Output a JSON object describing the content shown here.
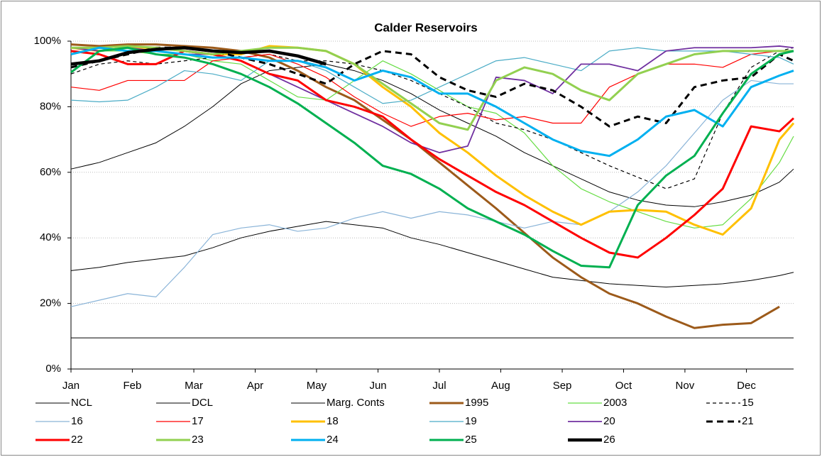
{
  "chart_data": {
    "type": "line",
    "title": "Calder Reservoirs",
    "x": [
      1,
      3,
      5,
      7,
      9,
      11,
      13,
      15,
      17,
      19,
      21,
      23,
      25,
      27,
      29,
      31,
      33,
      35,
      37,
      39,
      41,
      43,
      45,
      47,
      49,
      51,
      52
    ],
    "xlim": [
      1,
      52
    ],
    "xticks": [
      {
        "value": 1,
        "label": "Jan"
      },
      {
        "value": 5.33,
        "label": "Feb"
      },
      {
        "value": 9.67,
        "label": "Mar"
      },
      {
        "value": 14,
        "label": "Apr"
      },
      {
        "value": 18.33,
        "label": "May"
      },
      {
        "value": 22.67,
        "label": "Jun"
      },
      {
        "value": 27,
        "label": "Jul"
      },
      {
        "value": 31.33,
        "label": "Aug"
      },
      {
        "value": 35.67,
        "label": "Sep"
      },
      {
        "value": 40,
        "label": "Oct"
      },
      {
        "value": 44.33,
        "label": "Nov"
      },
      {
        "value": 48.67,
        "label": "Dec"
      }
    ],
    "ylim": [
      0,
      100
    ],
    "yticks": [
      {
        "value": 0,
        "label": "0%"
      },
      {
        "value": 20,
        "label": "20%"
      },
      {
        "value": 40,
        "label": "40%"
      },
      {
        "value": 60,
        "label": "60%"
      },
      {
        "value": 80,
        "label": "80%"
      },
      {
        "value": 100,
        "label": "100%"
      }
    ],
    "grid": true,
    "legend": "bottom",
    "series": [
      {
        "name": "NCL",
        "color": "#000000",
        "weight": "hair",
        "dash": false,
        "values": [
          61,
          63,
          66,
          69,
          74,
          80,
          87,
          91,
          92,
          93,
          91,
          88,
          84,
          79,
          75,
          71,
          66,
          62,
          58,
          54,
          51.5,
          50,
          49.5,
          51,
          53,
          57,
          61
        ]
      },
      {
        "name": "DCL",
        "color": "#000000",
        "weight": "hair",
        "dash": false,
        "values": [
          30,
          31,
          32.5,
          33.5,
          34.5,
          37,
          40,
          42,
          43.5,
          45,
          44,
          43,
          40,
          38,
          35.5,
          33,
          30.5,
          28,
          27,
          26,
          25.5,
          25,
          25.5,
          26,
          27,
          28.5,
          29.5
        ]
      },
      {
        "name": "Marg. Conts",
        "color": "#000000",
        "weight": "hair",
        "dash": false,
        "values": [
          9.5,
          9.5,
          9.5,
          9.5,
          9.5,
          9.5,
          9.5,
          9.5,
          9.5,
          9.5,
          9.5,
          9.5,
          9.5,
          9.5,
          9.5,
          9.5,
          9.5,
          9.5,
          9.5,
          9.5,
          9.5,
          9.5,
          9.5,
          9.5,
          9.5,
          9.5,
          9.5
        ]
      },
      {
        "name": "1995",
        "color": "#9c5a1a",
        "weight": "thick",
        "dash": false,
        "values": [
          99,
          98.5,
          99,
          99,
          98.5,
          98,
          97,
          95,
          91,
          86,
          82,
          76,
          70,
          63,
          56,
          49,
          41.5,
          34,
          28,
          23,
          20,
          16,
          12.5,
          13.5,
          14,
          19,
          null
        ]
      },
      {
        "name": "2003",
        "color": "#66dd44",
        "weight": "thin",
        "dash": false,
        "values": [
          98,
          97,
          97,
          96,
          96,
          94,
          93,
          88,
          83,
          82,
          88,
          94,
          90,
          85,
          80,
          78,
          72,
          62,
          55,
          51,
          48,
          45,
          43,
          44,
          52,
          63,
          71
        ]
      },
      {
        "name": "15",
        "color": "#000000",
        "weight": "thin",
        "dash": true,
        "values": [
          90,
          93,
          94,
          93,
          94,
          95,
          95,
          96,
          94,
          94,
          93,
          91,
          88,
          84,
          80,
          75,
          73,
          70,
          66,
          62,
          58.5,
          55,
          58,
          78,
          92,
          97,
          98
        ]
      },
      {
        "name": "16",
        "color": "#8ab4d8",
        "weight": "thin",
        "dash": false,
        "values": [
          19,
          21,
          23,
          22,
          31,
          41,
          43,
          44,
          42,
          43,
          46,
          48,
          46,
          48,
          47,
          45,
          43,
          45,
          44,
          48,
          54,
          62,
          72,
          82,
          88,
          87,
          87
        ]
      },
      {
        "name": "17",
        "color": "#ff0000",
        "weight": "thin",
        "dash": false,
        "values": [
          86,
          85,
          88,
          88,
          88,
          94,
          95,
          96,
          93,
          89,
          83,
          78,
          74,
          77,
          78,
          76,
          77,
          75,
          75,
          86,
          90,
          93,
          93,
          92,
          96,
          97,
          97
        ]
      },
      {
        "name": "18",
        "color": "#ffc000",
        "weight": "thick",
        "dash": false,
        "values": [
          98,
          97,
          98,
          98,
          97,
          96,
          96,
          98.5,
          98,
          97,
          93,
          86,
          80,
          72,
          66,
          59,
          53,
          48,
          44,
          48,
          48.5,
          48,
          44,
          41,
          49,
          70,
          75
        ]
      },
      {
        "name": "19",
        "color": "#4bacc6",
        "weight": "thin",
        "dash": false,
        "values": [
          82,
          81.5,
          82,
          86,
          91,
          90,
          88,
          94,
          94,
          91,
          86,
          81,
          82,
          86,
          90,
          94,
          95,
          93,
          91,
          97,
          98,
          97,
          97,
          97,
          96,
          95,
          93
        ]
      },
      {
        "name": "20",
        "color": "#7030a0",
        "weight": "mid",
        "dash": false,
        "values": [
          98,
          97,
          98,
          97,
          96,
          96,
          94,
          90,
          86,
          82,
          78,
          74,
          69,
          66,
          68,
          89,
          88,
          84,
          93,
          93,
          91,
          97,
          98,
          98,
          98,
          98.5,
          98
        ]
      },
      {
        "name": "21",
        "color": "#000000",
        "weight": "thick",
        "dash": true,
        "values": [
          92,
          94,
          96,
          98,
          98,
          97,
          95,
          93,
          90,
          87,
          93,
          97,
          96,
          89,
          85,
          83,
          87,
          85,
          80,
          74,
          77,
          75,
          86,
          88,
          89,
          96,
          94
        ]
      },
      {
        "name": "22",
        "color": "#ff0000",
        "weight": "thick",
        "dash": false,
        "values": [
          97,
          96,
          93,
          93,
          97,
          96,
          94,
          90,
          88,
          82,
          80,
          77,
          70,
          64,
          59,
          54,
          50,
          45,
          40,
          35.5,
          34,
          40,
          47,
          55,
          74,
          72.5,
          76.5
        ]
      },
      {
        "name": "23",
        "color": "#92d050",
        "weight": "thick",
        "dash": false,
        "values": [
          98,
          98,
          98.5,
          98,
          97,
          96,
          97,
          98,
          98,
          97,
          93,
          87,
          81,
          75,
          73,
          88,
          92,
          90,
          85,
          82,
          90,
          93,
          96,
          97,
          97,
          97,
          97
        ]
      },
      {
        "name": "24",
        "color": "#00b0f0",
        "weight": "thick",
        "dash": false,
        "values": [
          96,
          98,
          97,
          97,
          96,
          95,
          95,
          94,
          94,
          92,
          88,
          91,
          89,
          84,
          84,
          80,
          75,
          70,
          66.5,
          65,
          70,
          77,
          79,
          74,
          86,
          89.5,
          91
        ]
      },
      {
        "name": "25",
        "color": "#00b050",
        "weight": "thick",
        "dash": false,
        "values": [
          90.5,
          97,
          98,
          96,
          95,
          93,
          90,
          86,
          81,
          75,
          69,
          62,
          59.5,
          55,
          49,
          45,
          41,
          36,
          31.5,
          31,
          50,
          59,
          65,
          78,
          90,
          96,
          97
        ]
      },
      {
        "name": "26",
        "color": "#000000",
        "weight": "heavy",
        "dash": false,
        "values": [
          93,
          94,
          96.5,
          97.5,
          98,
          97,
          96.5,
          97,
          95.5,
          93,
          null,
          null,
          null,
          null,
          null,
          null,
          null,
          null,
          null,
          null,
          null,
          null,
          null,
          null,
          null,
          null,
          null
        ]
      }
    ]
  }
}
